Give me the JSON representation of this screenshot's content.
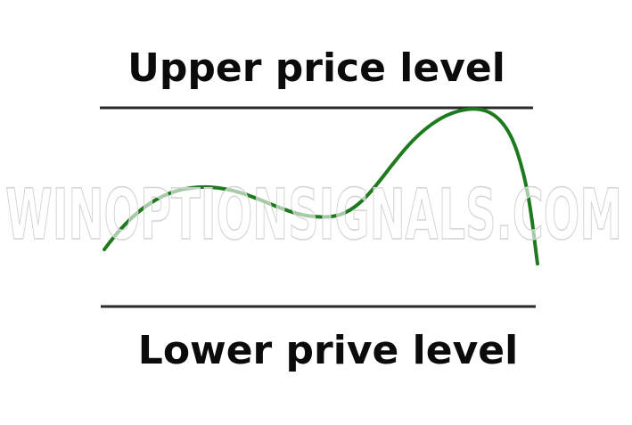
{
  "labels": {
    "upper": "Upper price level",
    "lower": "Lower prive level"
  },
  "watermark": "WINOPTIONSIGNALS.COM"
}
